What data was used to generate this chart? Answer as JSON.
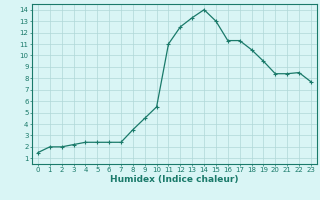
{
  "x": [
    0,
    1,
    2,
    3,
    4,
    5,
    6,
    7,
    8,
    9,
    10,
    11,
    12,
    13,
    14,
    15,
    16,
    17,
    18,
    19,
    20,
    21,
    22,
    23
  ],
  "y": [
    1.5,
    2.0,
    2.0,
    2.2,
    2.4,
    2.4,
    2.4,
    2.4,
    3.5,
    4.5,
    5.5,
    11.0,
    12.5,
    13.3,
    14.0,
    13.0,
    11.3,
    11.3,
    10.5,
    9.5,
    8.4,
    8.4,
    8.5,
    7.7
  ],
  "line_color": "#1a7a6a",
  "marker": "+",
  "marker_size": 3,
  "bg_color": "#d9f5f5",
  "grid_color": "#b0d8d8",
  "tick_color": "#1a7a6a",
  "xlabel": "Humidex (Indice chaleur)",
  "xlabel_fontsize": 6.5,
  "xlim": [
    -0.5,
    23.5
  ],
  "ylim": [
    0.5,
    14.5
  ],
  "yticks": [
    1,
    2,
    3,
    4,
    5,
    6,
    7,
    8,
    9,
    10,
    11,
    12,
    13,
    14
  ],
  "xticks": [
    0,
    1,
    2,
    3,
    4,
    5,
    6,
    7,
    8,
    9,
    10,
    11,
    12,
    13,
    14,
    15,
    16,
    17,
    18,
    19,
    20,
    21,
    22,
    23
  ],
  "tick_fontsize": 5.0,
  "linewidth": 0.9
}
